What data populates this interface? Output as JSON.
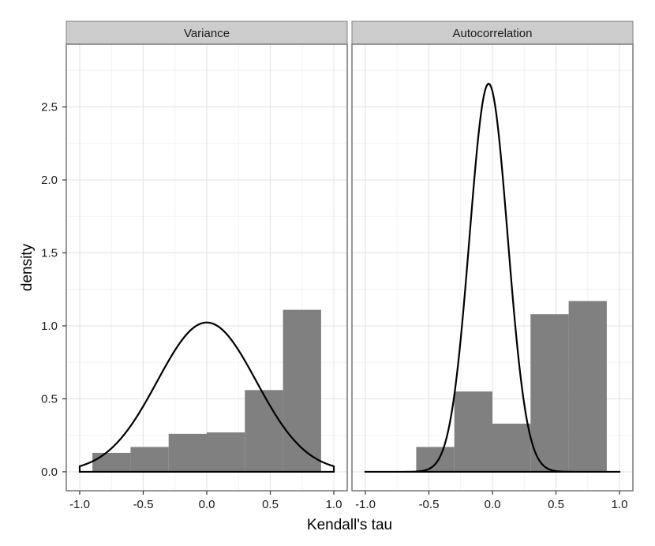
{
  "chart_data": {
    "type": "histogram+density",
    "xlabel": "Kendall's tau",
    "ylabel": "density",
    "xlim": [
      -1.0,
      1.0
    ],
    "ylim": [
      -0.13,
      2.93
    ],
    "x_ticks": [
      -1.0,
      -0.5,
      0.0,
      0.5,
      1.0
    ],
    "x_tick_labels": [
      "-1.0",
      "-0.5",
      "0.0",
      "0.5",
      "1.0"
    ],
    "y_ticks": [
      0.0,
      0.5,
      1.0,
      1.5,
      2.0,
      2.5
    ],
    "y_tick_labels": [
      "0.0",
      "0.5",
      "1.0",
      "1.5",
      "2.0",
      "2.5"
    ],
    "grid": true,
    "colors": {
      "bar": "#808080",
      "line": "#000000",
      "strip": "#cccccc",
      "grid_major": "#e6e6e6",
      "grid_minor": "#f3f3f3",
      "border": "#777777"
    },
    "panels": [
      {
        "title": "Variance",
        "bins": [
          {
            "x0": -0.9,
            "x1": -0.6,
            "value": 0.13
          },
          {
            "x0": -0.6,
            "x1": -0.3,
            "value": 0.17
          },
          {
            "x0": -0.3,
            "x1": 0.0,
            "value": 0.26
          },
          {
            "x0": 0.0,
            "x1": 0.3,
            "value": 0.27
          },
          {
            "x0": 0.3,
            "x1": 0.6,
            "value": 0.56
          },
          {
            "x0": 0.6,
            "x1": 0.9,
            "value": 1.11
          }
        ],
        "density": {
          "kind": "normal",
          "mean": 0.0,
          "sd": 0.39,
          "range": [
            -1.0,
            1.0
          ]
        }
      },
      {
        "title": "Autocorrelation",
        "bins": [
          {
            "x0": -0.6,
            "x1": -0.3,
            "value": 0.17
          },
          {
            "x0": -0.3,
            "x1": 0.0,
            "value": 0.55
          },
          {
            "x0": 0.0,
            "x1": 0.3,
            "value": 0.33
          },
          {
            "x0": 0.3,
            "x1": 0.6,
            "value": 1.08
          },
          {
            "x0": 0.6,
            "x1": 0.9,
            "value": 1.17
          }
        ],
        "density": {
          "kind": "normal",
          "mean": -0.03,
          "sd": 0.15,
          "range": [
            -1.0,
            1.0
          ]
        }
      }
    ]
  }
}
